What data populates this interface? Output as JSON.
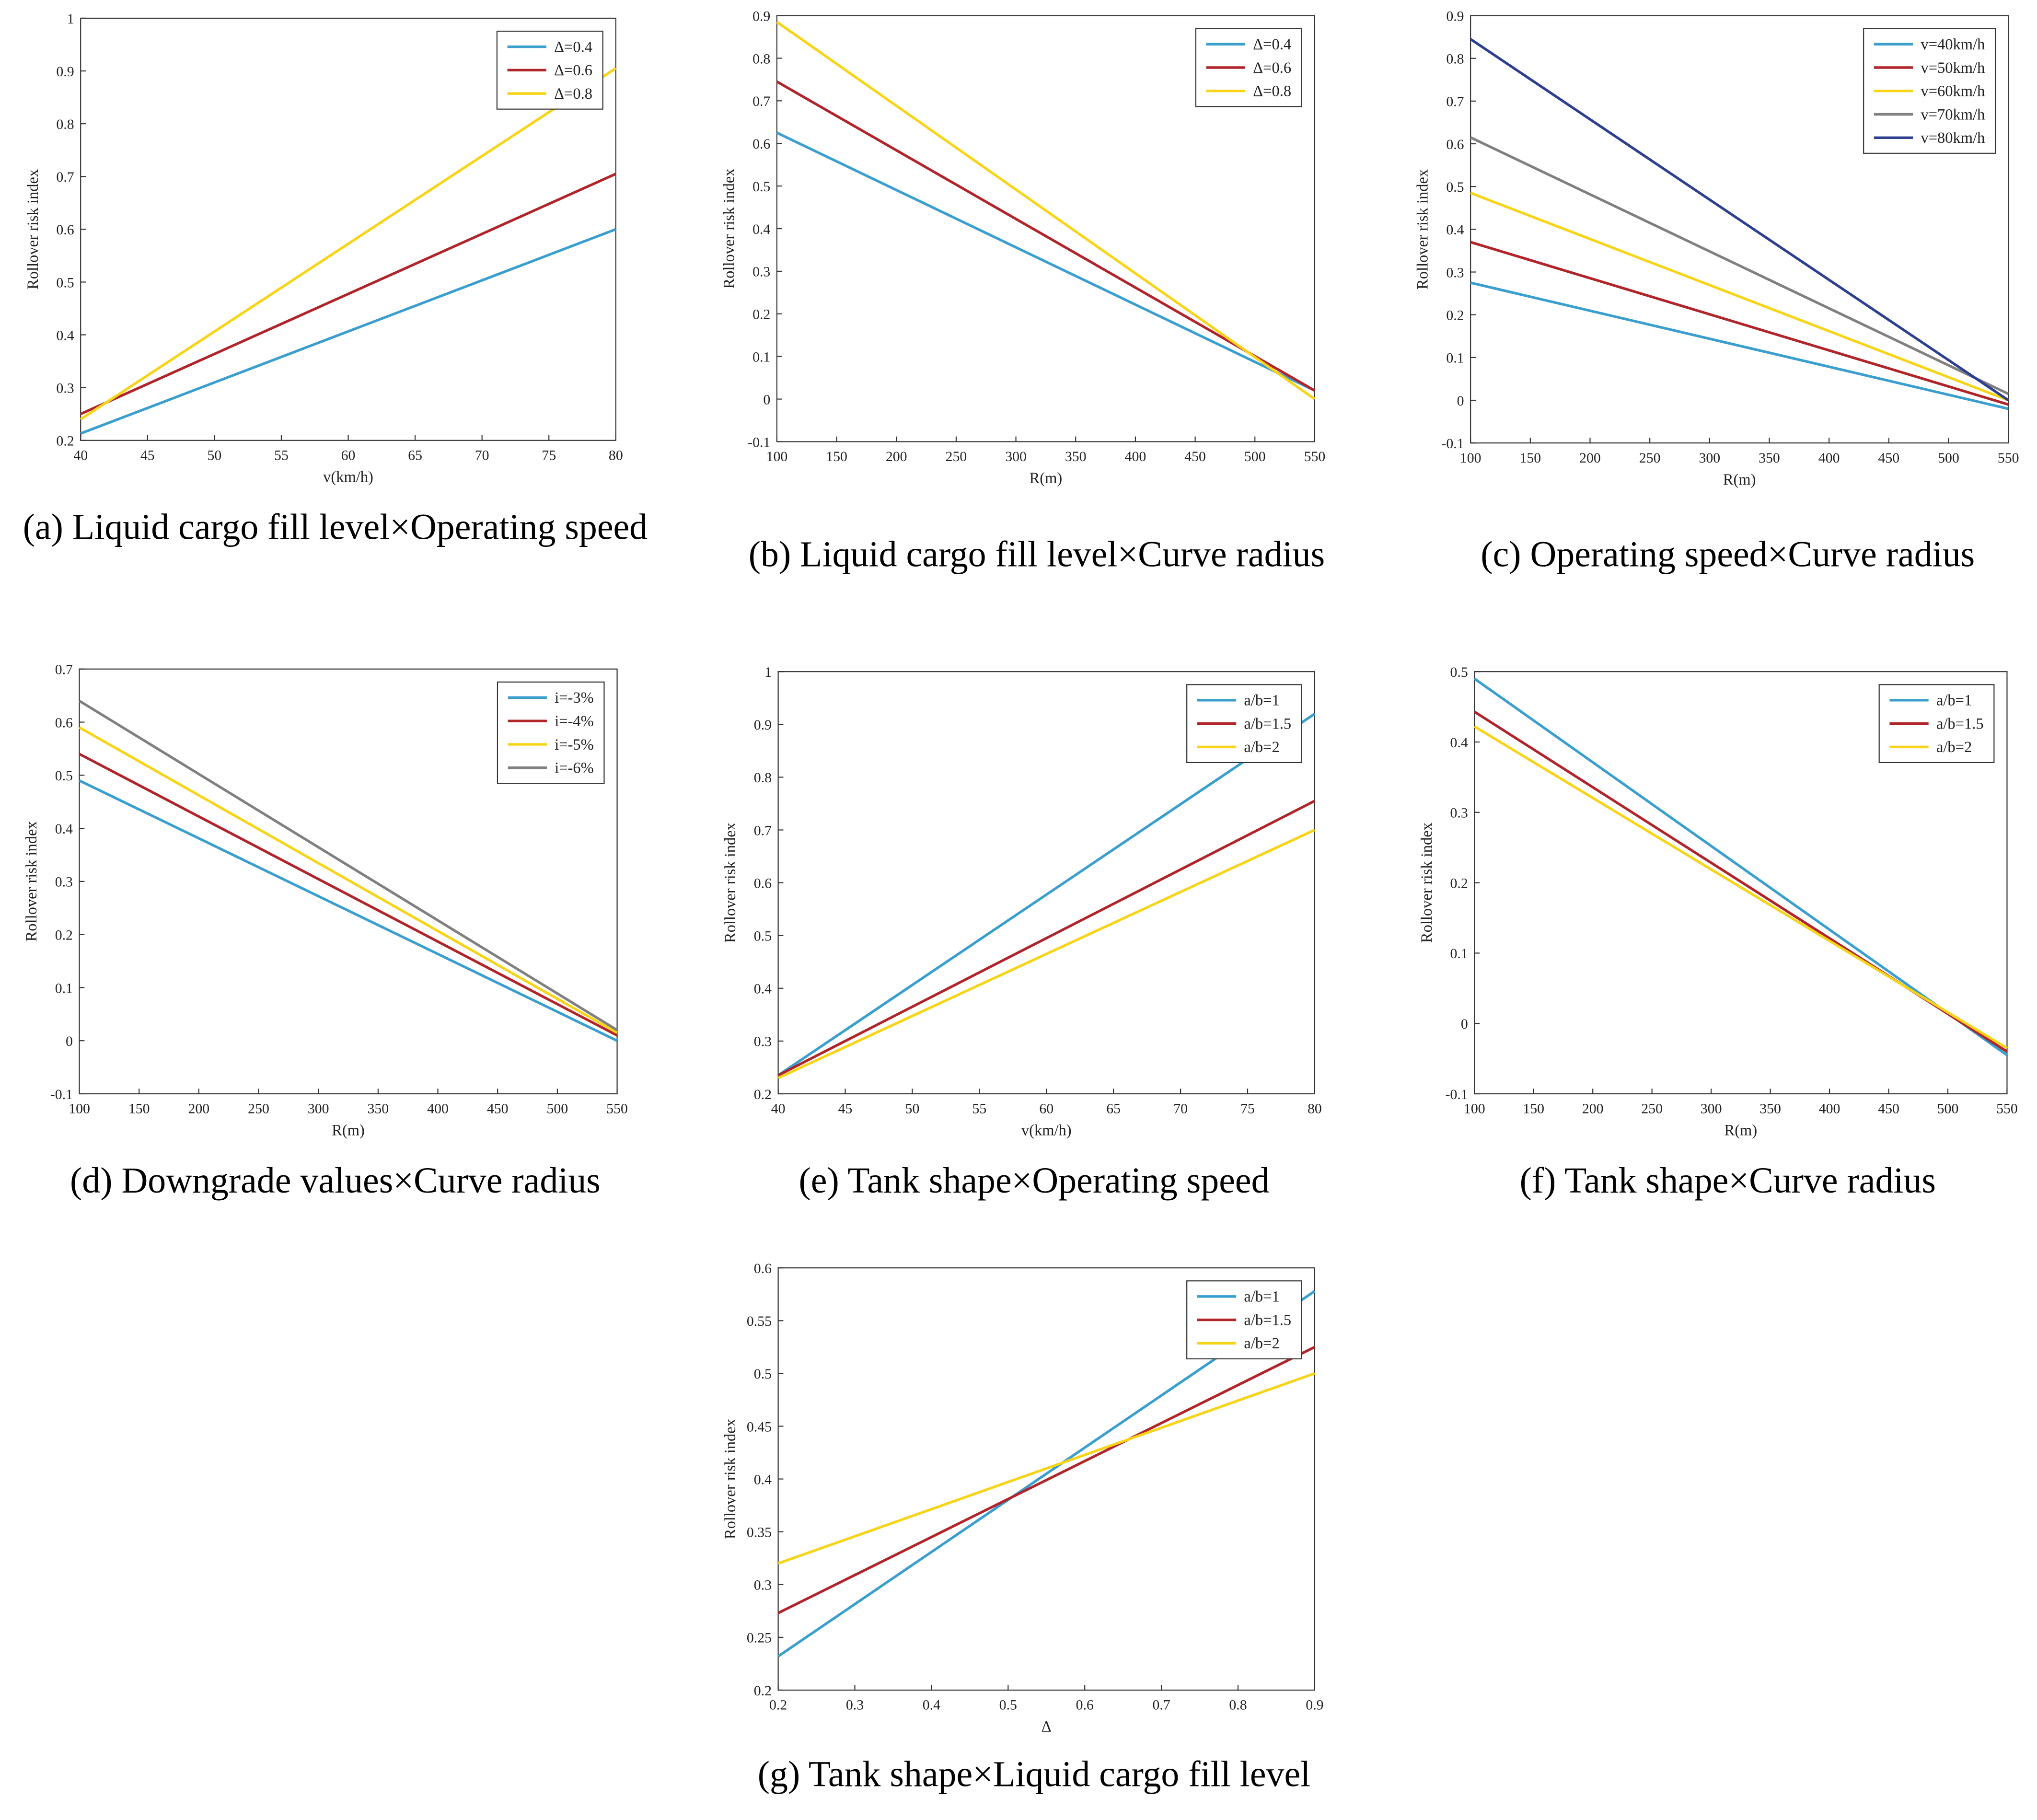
{
  "chart_data": [
    {
      "type": "line",
      "caption": "(a) Liquid cargo fill level×Operating speed",
      "xlabel": "v(km/h)",
      "ylabel": "Rollover risk index",
      "x": [
        40,
        80
      ],
      "xlim": [
        40,
        80
      ],
      "xticks": [
        40,
        45,
        50,
        55,
        60,
        65,
        70,
        75,
        80
      ],
      "ylim": [
        0.2,
        1
      ],
      "yticks": [
        0.2,
        0.3,
        0.4,
        0.5,
        0.6,
        0.7,
        0.8,
        0.9,
        1
      ],
      "legend": "upper-right",
      "series": [
        {
          "name": "Δ=0.4",
          "color": "#3a9fcf",
          "values": [
            0.213,
            0.6
          ]
        },
        {
          "name": "Δ=0.6",
          "color": "#b0242a",
          "values": [
            0.25,
            0.705
          ]
        },
        {
          "name": "Δ=0.8",
          "color": "#f7d417",
          "values": [
            0.24,
            0.905
          ]
        }
      ]
    },
    {
      "type": "line",
      "caption": "(b) Liquid cargo fill level×Curve radius",
      "xlabel": "R(m)",
      "ylabel": "Rollover risk index",
      "x": [
        100,
        550
      ],
      "xlim": [
        100,
        550
      ],
      "xticks": [
        100,
        150,
        200,
        250,
        300,
        350,
        400,
        450,
        500,
        550
      ],
      "ylim": [
        -0.1,
        0.9
      ],
      "yticks": [
        -0.1,
        0,
        0.1,
        0.2,
        0.3,
        0.4,
        0.5,
        0.6,
        0.7,
        0.8,
        0.9
      ],
      "legend": "upper-right",
      "series": [
        {
          "name": "Δ=0.4",
          "color": "#3a9fcf",
          "values": [
            0.625,
            0.02
          ]
        },
        {
          "name": "Δ=0.6",
          "color": "#b0242a",
          "values": [
            0.745,
            0.02
          ]
        },
        {
          "name": "Δ=0.8",
          "color": "#f7d417",
          "values": [
            0.885,
            0.0
          ]
        }
      ]
    },
    {
      "type": "line",
      "caption": "(c) Operating speed×Curve radius",
      "xlabel": "R(m)",
      "ylabel": "Rollover risk index",
      "x": [
        100,
        550
      ],
      "xlim": [
        100,
        550
      ],
      "xticks": [
        100,
        150,
        200,
        250,
        300,
        350,
        400,
        450,
        500,
        550
      ],
      "ylim": [
        -0.1,
        0.9
      ],
      "yticks": [
        -0.1,
        0,
        0.1,
        0.2,
        0.3,
        0.4,
        0.5,
        0.6,
        0.7,
        0.8,
        0.9
      ],
      "legend": "upper-right",
      "series": [
        {
          "name": "v=40km/h",
          "color": "#3a9fcf",
          "values": [
            0.275,
            -0.02
          ]
        },
        {
          "name": "v=50km/h",
          "color": "#b0242a",
          "values": [
            0.37,
            -0.01
          ]
        },
        {
          "name": "v=60km/h",
          "color": "#f7d417",
          "values": [
            0.485,
            0.0
          ]
        },
        {
          "name": "v=70km/h",
          "color": "#808080",
          "values": [
            0.615,
            0.015
          ]
        },
        {
          "name": "v=80km/h",
          "color": "#2d3f90",
          "values": [
            0.845,
            0.0
          ]
        }
      ]
    },
    {
      "type": "line",
      "caption": "(d) Downgrade values×Curve radius",
      "xlabel": "R(m)",
      "ylabel": "Rollover risk index",
      "x": [
        100,
        550
      ],
      "xlim": [
        100,
        550
      ],
      "xticks": [
        100,
        150,
        200,
        250,
        300,
        350,
        400,
        450,
        500,
        550
      ],
      "ylim": [
        -0.1,
        0.7
      ],
      "yticks": [
        -0.1,
        0,
        0.1,
        0.2,
        0.3,
        0.4,
        0.5,
        0.6,
        0.7
      ],
      "legend": "upper-right",
      "series": [
        {
          "name": "i=-3%",
          "color": "#3a9fcf",
          "values": [
            0.49,
            0.0
          ]
        },
        {
          "name": "i=-4%",
          "color": "#b0242a",
          "values": [
            0.54,
            0.01
          ]
        },
        {
          "name": "i=-5%",
          "color": "#f7d417",
          "values": [
            0.59,
            0.015
          ]
        },
        {
          "name": "i=-6%",
          "color": "#808080",
          "values": [
            0.64,
            0.02
          ]
        }
      ]
    },
    {
      "type": "line",
      "caption": "(e) Tank shape×Operating speed",
      "xlabel": "v(km/h)",
      "ylabel": "Rollover risk index",
      "x": [
        40,
        80
      ],
      "xlim": [
        40,
        80
      ],
      "xticks": [
        40,
        45,
        50,
        55,
        60,
        65,
        70,
        75,
        80
      ],
      "ylim": [
        0.2,
        1
      ],
      "yticks": [
        0.2,
        0.3,
        0.4,
        0.5,
        0.6,
        0.7,
        0.8,
        0.9,
        1
      ],
      "legend": "upper-right",
      "series": [
        {
          "name": "a/b=1",
          "color": "#3a9fcf",
          "values": [
            0.235,
            0.92
          ]
        },
        {
          "name": "a/b=1.5",
          "color": "#b0242a",
          "values": [
            0.235,
            0.755
          ]
        },
        {
          "name": "a/b=2",
          "color": "#f7d417",
          "values": [
            0.23,
            0.7
          ]
        }
      ]
    },
    {
      "type": "line",
      "caption": "(f) Tank shape×Curve radius",
      "xlabel": "R(m)",
      "ylabel": "Rollover risk index",
      "x": [
        100,
        550
      ],
      "xlim": [
        100,
        550
      ],
      "xticks": [
        100,
        150,
        200,
        250,
        300,
        350,
        400,
        450,
        500,
        550
      ],
      "ylim": [
        -0.1,
        0.5
      ],
      "yticks": [
        -0.1,
        0,
        0.1,
        0.2,
        0.3,
        0.4,
        0.5
      ],
      "legend": "upper-right",
      "series": [
        {
          "name": "a/b=1",
          "color": "#3a9fcf",
          "values": [
            0.49,
            -0.045
          ]
        },
        {
          "name": "a/b=1.5",
          "color": "#b0242a",
          "values": [
            0.443,
            -0.04
          ]
        },
        {
          "name": "a/b=2",
          "color": "#f7d417",
          "values": [
            0.422,
            -0.035
          ]
        }
      ]
    },
    {
      "type": "line",
      "caption": "(g) Tank shape×Liquid cargo fill level",
      "xlabel": "Δ",
      "ylabel": "Rollover risk index",
      "x": [
        0.2,
        0.9
      ],
      "xlim": [
        0.2,
        0.9
      ],
      "xticks": [
        0.2,
        0.3,
        0.4,
        0.5,
        0.6,
        0.7,
        0.8,
        0.9
      ],
      "ylim": [
        0.2,
        0.6
      ],
      "yticks": [
        0.2,
        0.25,
        0.3,
        0.35,
        0.4,
        0.45,
        0.5,
        0.55,
        0.6
      ],
      "legend": "upper-right",
      "series": [
        {
          "name": "a/b=1",
          "color": "#3a9fcf",
          "values": [
            0.232,
            0.578
          ]
        },
        {
          "name": "a/b=1.5",
          "color": "#b0242a",
          "values": [
            0.273,
            0.525
          ]
        },
        {
          "name": "a/b=2",
          "color": "#f7d417",
          "values": [
            0.32,
            0.5
          ]
        }
      ]
    }
  ]
}
